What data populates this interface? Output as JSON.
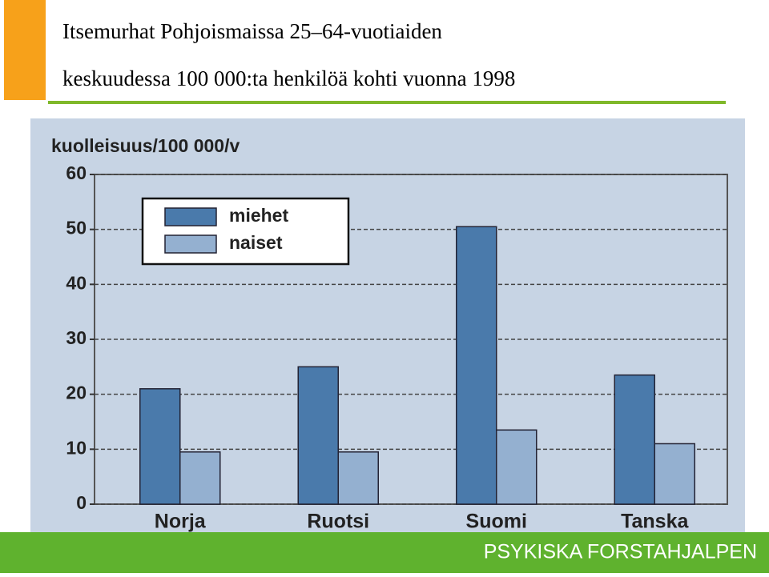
{
  "slide": {
    "title": [
      "Itsemurhat Pohjoismaissa 25–64-vuotiaiden",
      "keskuudessa 100 000:ta henkilöä kohti vuonna 1998"
    ],
    "footer": "PSYKISKA FORSTAHJALPEN"
  },
  "chart_data": {
    "type": "bar",
    "y_label": "kuolleisuus/100 000/v",
    "categories": [
      "Norja",
      "Ruotsi",
      "Suomi",
      "Tanska"
    ],
    "series": [
      {
        "name": "miehet",
        "color": "#4a7aab",
        "values": [
          21,
          25,
          50.5,
          23.5
        ]
      },
      {
        "name": "naiset",
        "color": "#94b0d0",
        "values": [
          9.5,
          9.5,
          13.5,
          11
        ]
      }
    ],
    "ylim": [
      0,
      60
    ],
    "yticks": [
      0,
      10,
      20,
      30,
      40,
      50,
      60
    ],
    "grid": true,
    "legend": "upper-left"
  }
}
